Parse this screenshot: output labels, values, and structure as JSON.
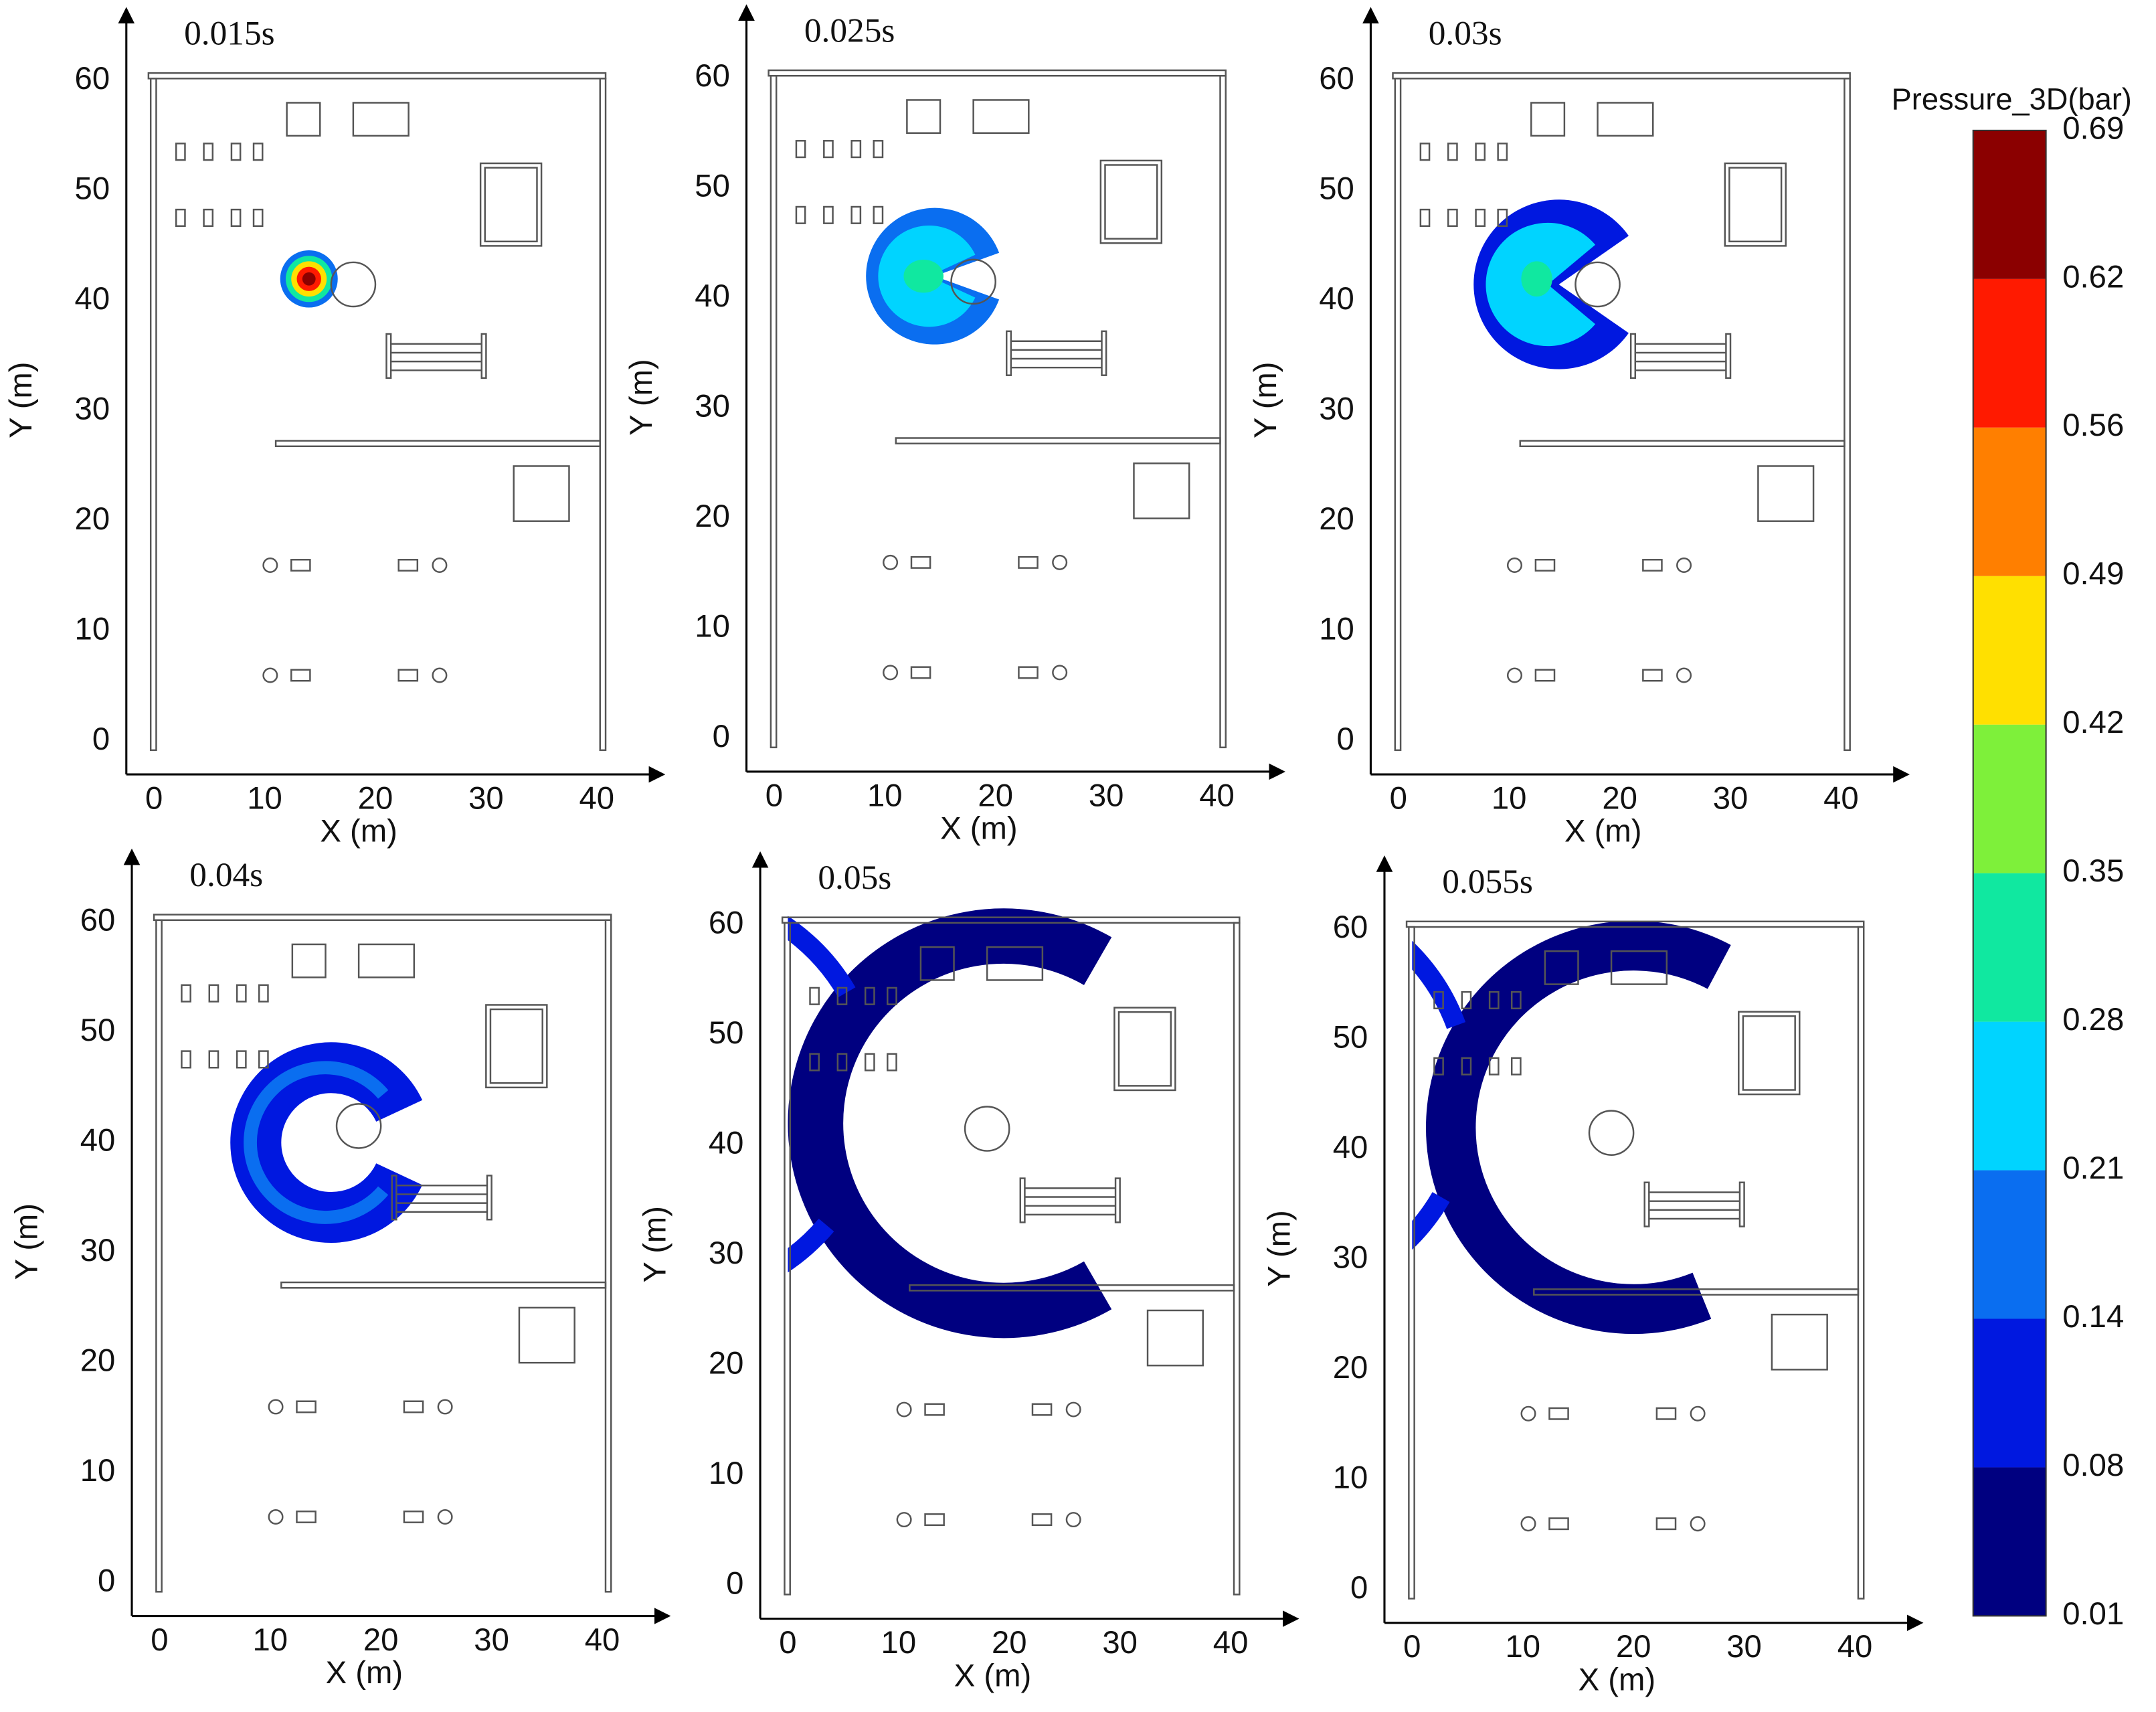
{
  "chart_data": [
    {
      "type": "contour",
      "title": "0.015s",
      "x_label": "X (m)",
      "y_label": "Y (m)",
      "xlim": [
        -2.5,
        45
      ],
      "ylim": [
        -3,
        65.5
      ],
      "xticks": [
        0,
        10,
        20,
        30,
        40
      ],
      "yticks": [
        0,
        10,
        20,
        30,
        40,
        50,
        60
      ]
    },
    {
      "type": "contour",
      "title": "0.025s",
      "x_label": "X (m)",
      "y_label": "Y (m)",
      "xlim": [
        -2.5,
        45
      ],
      "ylim": [
        -3,
        65.5
      ],
      "xticks": [
        0,
        10,
        20,
        30,
        40
      ],
      "yticks": [
        0,
        10,
        20,
        30,
        40,
        50,
        60
      ]
    },
    {
      "type": "contour",
      "title": "0.03s",
      "x_label": "X (m)",
      "y_label": "Y (m)",
      "xlim": [
        -2.5,
        45
      ],
      "ylim": [
        -3,
        65.5
      ],
      "xticks": [
        0,
        10,
        20,
        30,
        40
      ],
      "yticks": [
        0,
        10,
        20,
        30,
        40,
        50,
        60
      ]
    },
    {
      "type": "contour",
      "title": "0.04s",
      "x_label": "X (m)",
      "y_label": "Y (m)",
      "xlim": [
        -2.5,
        45
      ],
      "ylim": [
        -3,
        65.5
      ],
      "xticks": [
        0,
        10,
        20,
        30,
        40
      ],
      "yticks": [
        0,
        10,
        20,
        30,
        40,
        50,
        60
      ]
    },
    {
      "type": "contour",
      "title": "0.05s",
      "x_label": "X (m)",
      "y_label": "Y (m)",
      "xlim": [
        -2.5,
        45
      ],
      "ylim": [
        -3,
        65.5
      ],
      "xticks": [
        0,
        10,
        20,
        30,
        40
      ],
      "yticks": [
        0,
        10,
        20,
        30,
        40,
        50,
        60
      ]
    },
    {
      "type": "contour",
      "title": "0.055s",
      "x_label": "X (m)",
      "y_label": "Y (m)",
      "xlim": [
        -2.5,
        45
      ],
      "ylim": [
        -3,
        65.5
      ],
      "xticks": [
        0,
        10,
        20,
        30,
        40
      ],
      "yticks": [
        0,
        10,
        20,
        30,
        40,
        50,
        60
      ]
    },
    {
      "type": "colorbar",
      "title": "Pressure_3D(bar)",
      "levels": [
        0.01,
        0.08,
        0.14,
        0.21,
        0.28,
        0.35,
        0.42,
        0.49,
        0.56,
        0.62,
        0.69
      ],
      "colors": [
        "#000080",
        "#0018e0",
        "#0a6ef0",
        "#00d4ff",
        "#10e8a0",
        "#7ef03a",
        "#ffe000",
        "#ff7f00",
        "#ff1a00",
        "#8b0000"
      ]
    }
  ]
}
